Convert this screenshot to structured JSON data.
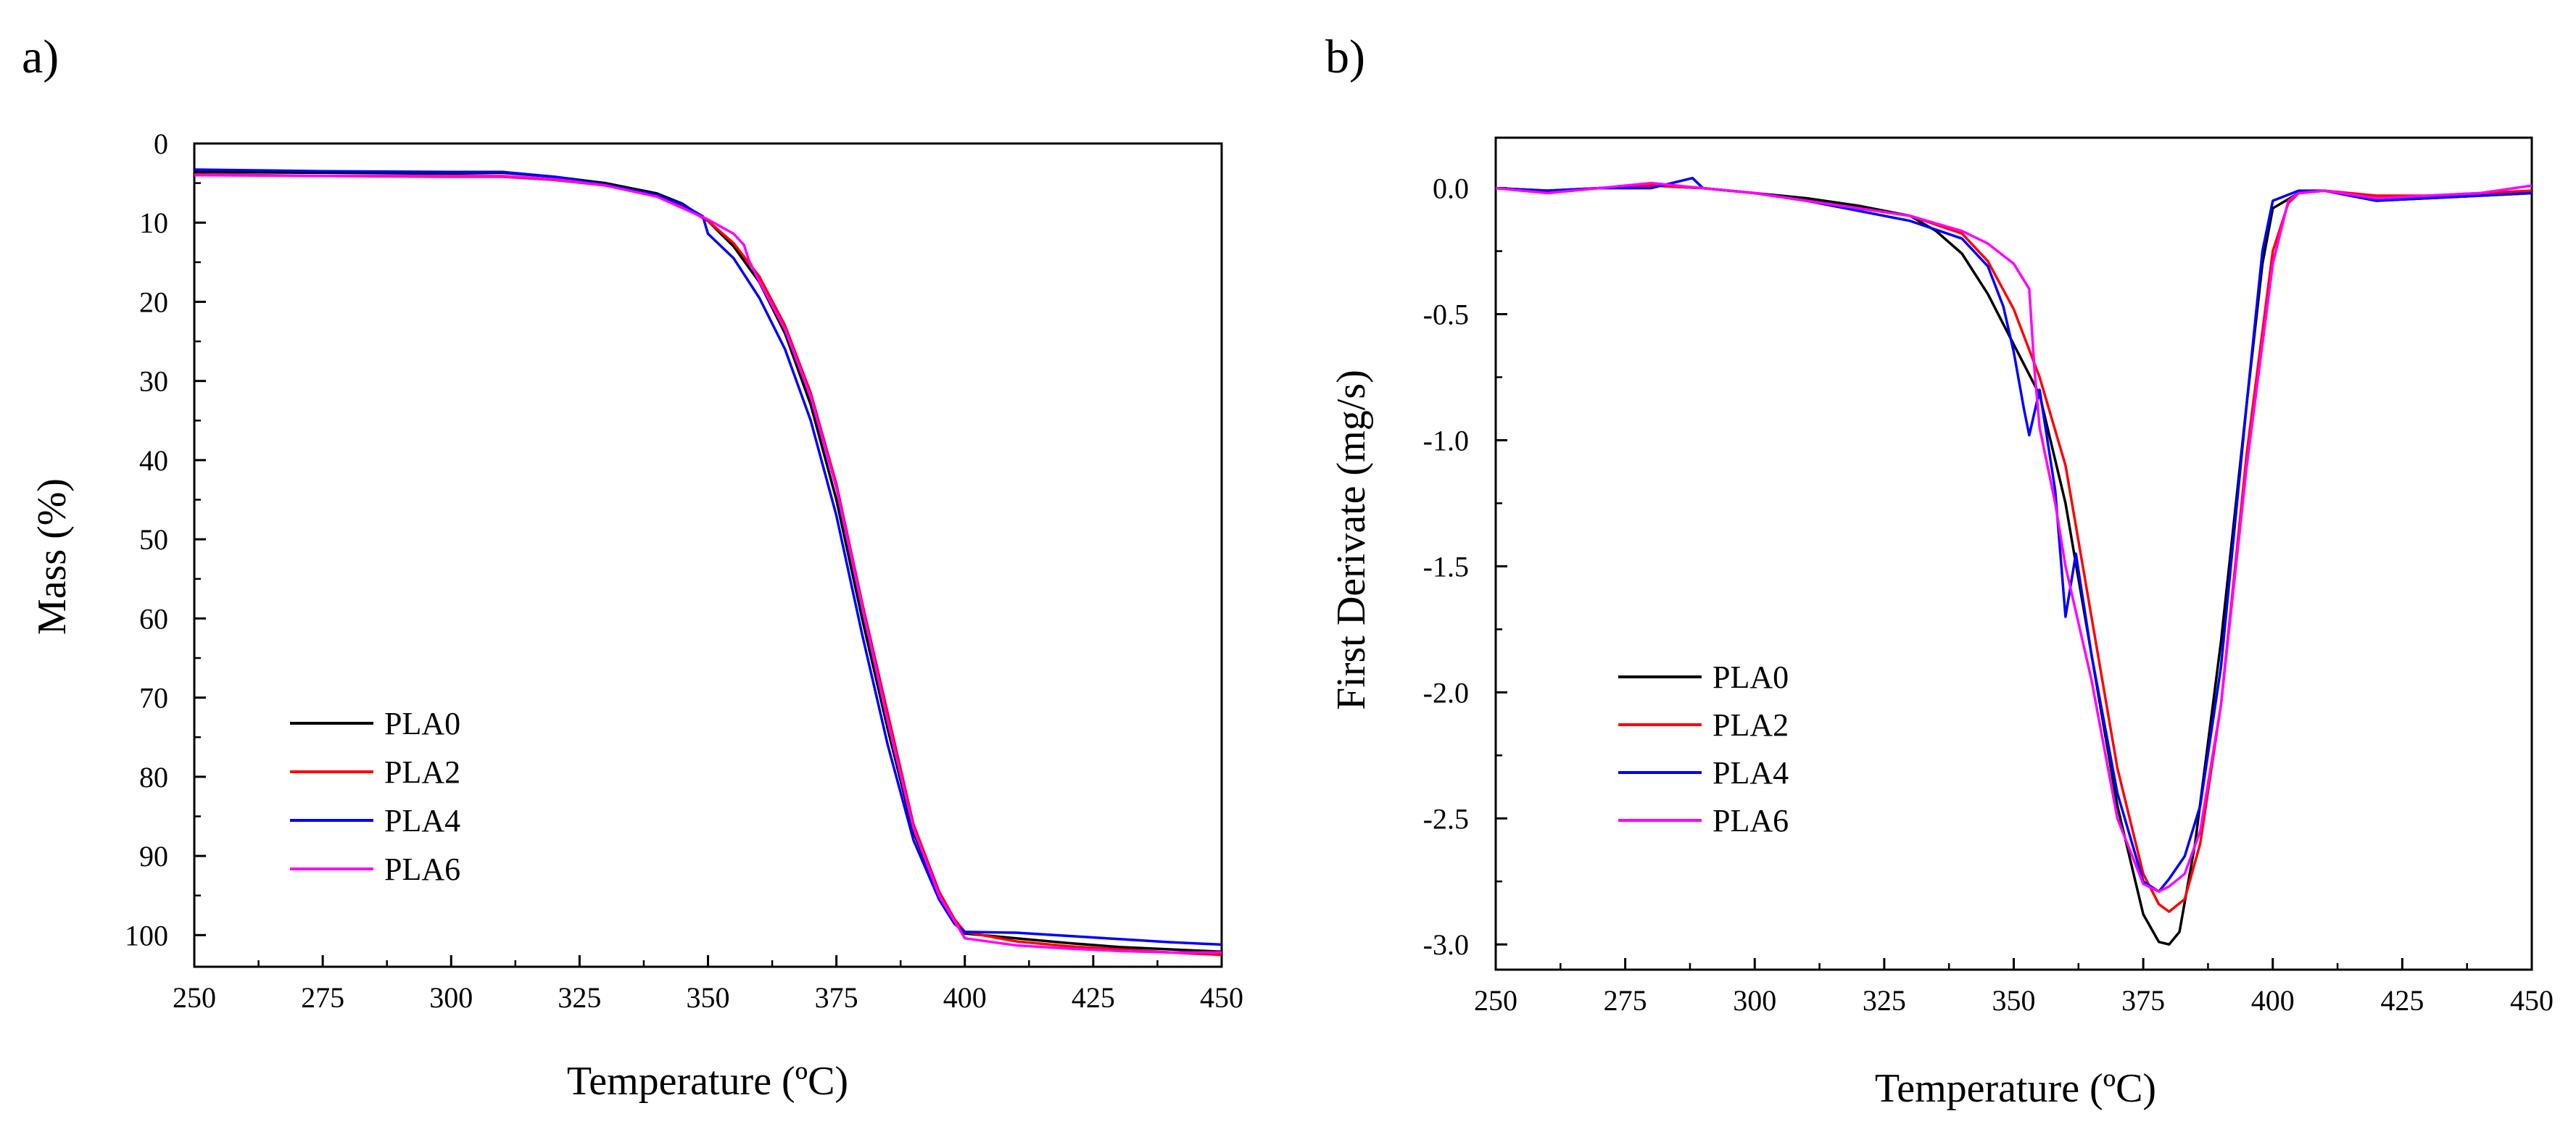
{
  "panels": [
    {
      "label": "a)"
    },
    {
      "label": "b)"
    }
  ],
  "chart_data": [
    {
      "type": "line",
      "xlabel": "Temperature (ºC)",
      "ylabel": "Mass (%)",
      "xlim": [
        250,
        450
      ],
      "ylim": [
        0,
        104
      ],
      "y_inverted": true,
      "x_ticks": [
        250,
        275,
        300,
        325,
        350,
        375,
        400,
        425,
        450
      ],
      "y_ticks": [
        0,
        10,
        20,
        30,
        40,
        50,
        60,
        70,
        80,
        90,
        100
      ],
      "legend_position": "bottom-left",
      "series": [
        {
          "name": "PLA0",
          "color": "#000000",
          "x": [
            250,
            275,
            300,
            310,
            320,
            330,
            340,
            345,
            350,
            355,
            360,
            365,
            370,
            375,
            380,
            385,
            390,
            395,
            398,
            400,
            410,
            420,
            430,
            440,
            450
          ],
          "y": [
            3.6,
            3.7,
            3.8,
            3.7,
            4.2,
            5.0,
            6.3,
            7.6,
            9.8,
            13.0,
            17.5,
            24,
            33,
            45,
            60,
            74,
            87,
            95,
            98.5,
            99.8,
            100.4,
            101.0,
            101.5,
            101.8,
            102.1
          ]
        },
        {
          "name": "PLA2",
          "color": "#ff0000",
          "x": [
            250,
            275,
            300,
            310,
            320,
            330,
            340,
            345,
            350,
            355,
            360,
            365,
            370,
            375,
            380,
            385,
            390,
            395,
            398,
            400,
            410,
            420,
            430,
            440,
            450
          ],
          "y": [
            3.9,
            4.1,
            4.2,
            4.2,
            4.6,
            5.3,
            6.6,
            7.9,
            9.8,
            12.6,
            16.8,
            23,
            31.5,
            43,
            58,
            72,
            86,
            94.5,
            98,
            99.6,
            100.8,
            101.4,
            101.8,
            102.2,
            102.5
          ]
        },
        {
          "name": "PLA4",
          "color": "#0000ff",
          "x": [
            250,
            275,
            300,
            310,
            320,
            330,
            340,
            345,
            349,
            350,
            355,
            360,
            365,
            370,
            375,
            380,
            385,
            390,
            395,
            398,
            400,
            410,
            420,
            430,
            440,
            450
          ],
          "y": [
            3.3,
            3.5,
            3.6,
            3.6,
            4.2,
            5.2,
            6.5,
            7.7,
            9.2,
            11.4,
            14.5,
            19.5,
            26,
            35,
            47,
            62,
            76,
            88,
            95.5,
            98.6,
            99.6,
            99.7,
            100.1,
            100.5,
            100.9,
            101.2
          ]
        },
        {
          "name": "PLA6",
          "color": "#ff00ff",
          "x": [
            250,
            275,
            300,
            310,
            320,
            330,
            340,
            350,
            355,
            357,
            358,
            360,
            365,
            370,
            375,
            380,
            385,
            390,
            395,
            400,
            410,
            420,
            430,
            440,
            450
          ],
          "y": [
            4.0,
            4.1,
            4.1,
            4.1,
            4.5,
            5.3,
            6.7,
            9.6,
            11.4,
            12.8,
            14.8,
            17.4,
            23.5,
            32,
            43.5,
            58.5,
            73,
            86.5,
            95,
            100.4,
            101.3,
            101.7,
            102.0,
            102.2,
            102.2
          ]
        }
      ]
    },
    {
      "type": "line",
      "xlabel": "Temperature (ºC)",
      "ylabel": "First Derivate (mg/s)",
      "xlim": [
        250,
        450
      ],
      "ylim": [
        -3.1,
        0.2
      ],
      "x_ticks": [
        250,
        275,
        300,
        325,
        350,
        375,
        400,
        425,
        450
      ],
      "y_ticks": [
        0.0,
        -0.5,
        -1.0,
        -1.5,
        -2.0,
        -2.5,
        -3.0
      ],
      "legend_position": "bottom-left",
      "series": [
        {
          "name": "PLA0",
          "color": "#000000",
          "x": [
            250,
            260,
            270,
            280,
            290,
            300,
            310,
            320,
            330,
            335,
            340,
            345,
            350,
            355,
            360,
            365,
            370,
            375,
            378,
            380,
            382,
            385,
            390,
            395,
            398,
            400,
            405,
            410,
            420,
            430,
            440,
            450
          ],
          "y": [
            0.0,
            -0.01,
            0.0,
            0.01,
            0.0,
            -0.02,
            -0.04,
            -0.07,
            -0.11,
            -0.17,
            -0.26,
            -0.42,
            -0.62,
            -0.82,
            -1.25,
            -1.85,
            -2.45,
            -2.88,
            -2.99,
            -3.0,
            -2.95,
            -2.6,
            -1.8,
            -0.85,
            -0.3,
            -0.08,
            -0.02,
            -0.01,
            -0.05,
            -0.04,
            -0.03,
            -0.02
          ]
        },
        {
          "name": "PLA2",
          "color": "#ff0000",
          "x": [
            250,
            260,
            270,
            280,
            290,
            300,
            310,
            320,
            330,
            340,
            345,
            350,
            355,
            360,
            365,
            370,
            375,
            378,
            380,
            383,
            386,
            390,
            395,
            400,
            403,
            405,
            410,
            420,
            430,
            440,
            450
          ],
          "y": [
            0.0,
            -0.01,
            0.0,
            0.01,
            0.0,
            -0.02,
            -0.05,
            -0.08,
            -0.11,
            -0.18,
            -0.29,
            -0.48,
            -0.75,
            -1.1,
            -1.7,
            -2.3,
            -2.72,
            -2.84,
            -2.87,
            -2.82,
            -2.6,
            -2.05,
            -1.05,
            -0.25,
            -0.06,
            -0.02,
            -0.01,
            -0.03,
            -0.03,
            -0.02,
            -0.01
          ]
        },
        {
          "name": "PLA4",
          "color": "#0000ff",
          "x": [
            250,
            260,
            270,
            280,
            288,
            290,
            300,
            310,
            320,
            330,
            340,
            345,
            348,
            350,
            352,
            353,
            355,
            358,
            360,
            362,
            365,
            370,
            375,
            378,
            380,
            383,
            386,
            390,
            395,
            398,
            400,
            405,
            410,
            420,
            430,
            440,
            450
          ],
          "y": [
            0.0,
            -0.01,
            0.0,
            0.0,
            0.04,
            0.0,
            -0.02,
            -0.05,
            -0.09,
            -0.13,
            -0.2,
            -0.31,
            -0.47,
            -0.65,
            -0.88,
            -0.98,
            -0.8,
            -1.2,
            -1.7,
            -1.45,
            -1.85,
            -2.4,
            -2.75,
            -2.79,
            -2.74,
            -2.65,
            -2.45,
            -1.9,
            -0.85,
            -0.25,
            -0.05,
            -0.01,
            -0.01,
            -0.05,
            -0.04,
            -0.03,
            -0.02
          ]
        },
        {
          "name": "PLA6",
          "color": "#ff00ff",
          "x": [
            250,
            260,
            270,
            280,
            290,
            300,
            310,
            320,
            330,
            340,
            345,
            350,
            353,
            354,
            355,
            358,
            360,
            362,
            365,
            370,
            375,
            378,
            380,
            383,
            386,
            390,
            395,
            400,
            403,
            405,
            410,
            420,
            430,
            440,
            450
          ],
          "y": [
            0.0,
            -0.02,
            0.0,
            0.02,
            0.0,
            -0.02,
            -0.05,
            -0.08,
            -0.11,
            -0.17,
            -0.22,
            -0.3,
            -0.4,
            -0.72,
            -0.95,
            -1.25,
            -1.5,
            -1.68,
            -1.95,
            -2.5,
            -2.76,
            -2.79,
            -2.77,
            -2.72,
            -2.55,
            -2.05,
            -1.1,
            -0.3,
            -0.05,
            -0.02,
            -0.01,
            -0.04,
            -0.03,
            -0.02,
            0.01
          ]
        }
      ]
    }
  ]
}
